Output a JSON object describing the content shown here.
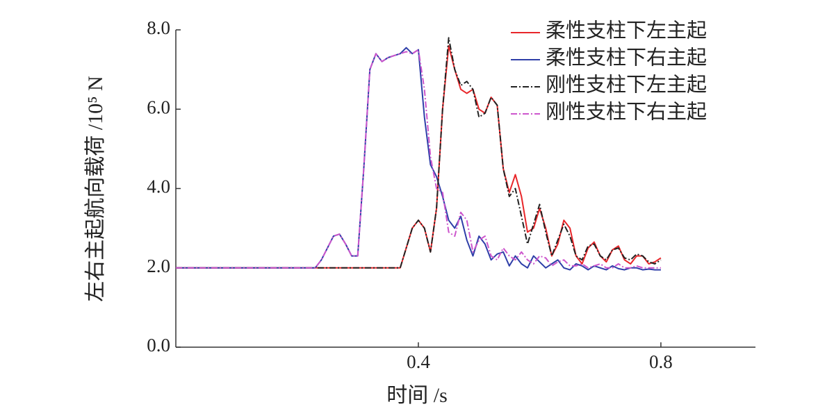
{
  "chart_data": {
    "type": "line",
    "x_label": "时间 /s",
    "y_label": "左右主起航向载荷 /10⁵ N",
    "x": [
      0,
      0.23,
      0.24,
      0.25,
      0.26,
      0.27,
      0.28,
      0.29,
      0.3,
      0.31,
      0.32,
      0.33,
      0.34,
      0.35,
      0.36,
      0.37,
      0.38,
      0.39,
      0.4,
      0.41,
      0.42,
      0.43,
      0.44,
      0.45,
      0.46,
      0.47,
      0.48,
      0.49,
      0.5,
      0.51,
      0.52,
      0.53,
      0.54,
      0.55,
      0.56,
      0.57,
      0.58,
      0.59,
      0.6,
      0.61,
      0.62,
      0.63,
      0.64,
      0.65,
      0.66,
      0.67,
      0.68,
      0.69,
      0.7,
      0.71,
      0.72,
      0.73,
      0.74,
      0.75,
      0.76,
      0.77,
      0.78,
      0.79,
      0.8
    ],
    "series": [
      {
        "name": "柔性支柱下左主起",
        "color": "#e8262a",
        "style": "solid",
        "values": [
          2,
          2,
          2,
          2,
          2,
          2,
          2,
          2,
          2,
          2,
          2,
          2,
          2,
          2,
          2,
          2,
          2.5,
          3.0,
          3.2,
          3.0,
          2.4,
          3.5,
          6.0,
          7.6,
          7.0,
          6.5,
          6.4,
          6.5,
          6.0,
          5.9,
          6.3,
          6.1,
          4.5,
          3.9,
          4.35,
          3.8,
          2.9,
          3.0,
          3.5,
          3.0,
          2.3,
          2.6,
          3.2,
          3.0,
          2.3,
          2.1,
          2.5,
          2.65,
          2.3,
          2.15,
          2.45,
          2.55,
          2.2,
          2.1,
          2.3,
          2.3,
          2.1,
          2.15,
          2.25
        ]
      },
      {
        "name": "柔性支柱下右主起",
        "color": "#2e3ea8",
        "style": "solid",
        "values": [
          2,
          2.0,
          2.2,
          2.5,
          2.8,
          2.85,
          2.6,
          2.3,
          2.3,
          4.5,
          7.0,
          7.4,
          7.2,
          7.3,
          7.35,
          7.4,
          7.55,
          7.4,
          7.5,
          5.8,
          4.6,
          4.3,
          3.8,
          3.2,
          3.0,
          3.3,
          2.7,
          2.3,
          2.8,
          2.6,
          2.2,
          2.35,
          2.4,
          2.05,
          2.3,
          2.1,
          2.0,
          2.3,
          2.15,
          2.0,
          2.1,
          2.2,
          2.0,
          1.95,
          2.1,
          2.05,
          1.95,
          2.05,
          2.0,
          1.95,
          2.05,
          1.98,
          1.95,
          2.0,
          2.0,
          1.95,
          1.97,
          1.95,
          1.95
        ]
      },
      {
        "name": "刚性支柱下左主起",
        "color": "#222222",
        "style": "dashdot",
        "values": [
          2,
          2,
          2,
          2,
          2,
          2,
          2,
          2,
          2,
          2,
          2,
          2,
          2,
          2,
          2,
          2,
          2.5,
          3.0,
          3.2,
          3.0,
          2.4,
          3.5,
          6.0,
          7.8,
          7.0,
          6.6,
          6.7,
          6.5,
          5.8,
          5.9,
          6.3,
          6.1,
          4.5,
          3.8,
          4.0,
          3.3,
          2.6,
          3.1,
          3.6,
          2.9,
          2.3,
          2.7,
          3.1,
          2.8,
          2.3,
          2.2,
          2.55,
          2.6,
          2.3,
          2.2,
          2.45,
          2.5,
          2.25,
          2.2,
          2.35,
          2.3,
          2.15,
          2.1,
          2.2
        ]
      },
      {
        "name": "刚性支柱下右主起",
        "color": "#cc55cc",
        "style": "dashdot",
        "values": [
          2,
          2.0,
          2.2,
          2.5,
          2.8,
          2.85,
          2.6,
          2.3,
          2.3,
          4.5,
          7.0,
          7.4,
          7.2,
          7.3,
          7.35,
          7.4,
          7.45,
          7.4,
          7.5,
          6.5,
          4.8,
          4.0,
          3.9,
          2.9,
          2.8,
          3.4,
          3.2,
          2.4,
          2.7,
          2.8,
          2.3,
          2.2,
          2.5,
          2.3,
          2.2,
          2.4,
          2.2,
          2.1,
          2.3,
          2.25,
          2.05,
          2.15,
          2.2,
          2.05,
          2.05,
          2.1,
          2.0,
          2.05,
          2.1,
          2.0,
          2.0,
          2.1,
          2.0,
          2.0,
          2.05,
          2.0,
          2.0,
          2.0,
          2.0
        ]
      }
    ],
    "xlim": [
      0,
      0.956
    ],
    "xticks": [
      0.4,
      0.8
    ],
    "ylim": [
      0,
      8
    ],
    "yticks": [
      {
        "value": 0,
        "label": "0.0"
      },
      {
        "value": 2,
        "label": "2.0"
      },
      {
        "value": 4,
        "label": "4.0"
      },
      {
        "value": 6,
        "label": "6.0"
      },
      {
        "value": 8,
        "label": "8.0"
      }
    ],
    "legend": "top-right",
    "grid": false
  }
}
